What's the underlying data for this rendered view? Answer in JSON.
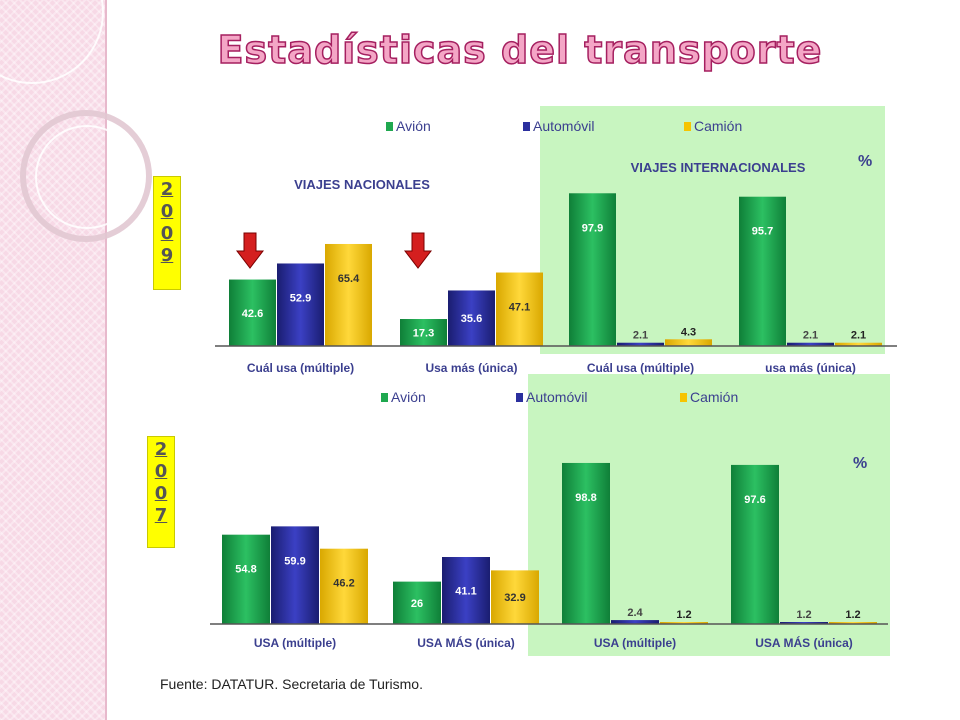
{
  "title": "Estadísticas del transporte",
  "source": "Fuente: DATATUR. Secretaria de Turismo.",
  "colors": {
    "avion": "#1fa84f",
    "automovil": "#2b2f9e",
    "camion": "#f6c400",
    "intl_bg": "#c8f5c0",
    "title_fill": "#f4a6c6",
    "title_stroke": "#a52060"
  },
  "chart_data": [
    {
      "type": "bar",
      "year_label": [
        "2",
        "0",
        "0",
        "9"
      ],
      "legend": [
        "Avión",
        "Automóvil",
        "Camión"
      ],
      "percent_symbol": "%",
      "nacionales_label": "VIAJES NACIONALES",
      "internacionales_label": "VIAJES INTERNACIONALES",
      "categories": [
        "Cuál usa (múltiple)",
        "Usa más (única)",
        "Cuál usa (múltiple)",
        "usa más (única)"
      ],
      "series": [
        {
          "name": "Avión",
          "values": [
            42.6,
            17.3,
            97.9,
            95.7
          ]
        },
        {
          "name": "Automóvil",
          "values": [
            52.9,
            35.6,
            2.1,
            2.1
          ]
        },
        {
          "name": "Camión",
          "values": [
            65.4,
            47.1,
            4.3,
            2.1
          ]
        }
      ],
      "ylim": [
        0,
        100
      ]
    },
    {
      "type": "bar",
      "year_label": [
        "2",
        "0",
        "0",
        "7"
      ],
      "legend": [
        "Avión",
        "Automóvil",
        "Camión"
      ],
      "percent_symbol": "%",
      "categories": [
        "USA (múltiple)",
        "USA MÁS (única)",
        "USA (múltiple)",
        "USA MÁS (única)"
      ],
      "series": [
        {
          "name": "Avión",
          "values": [
            54.8,
            26,
            98.8,
            97.6
          ]
        },
        {
          "name": "Automóvil",
          "values": [
            59.9,
            41.1,
            2.4,
            1.2
          ]
        },
        {
          "name": "Camión",
          "values": [
            46.2,
            32.9,
            1.2,
            1.2
          ]
        }
      ],
      "ylim": [
        0,
        100
      ]
    }
  ]
}
